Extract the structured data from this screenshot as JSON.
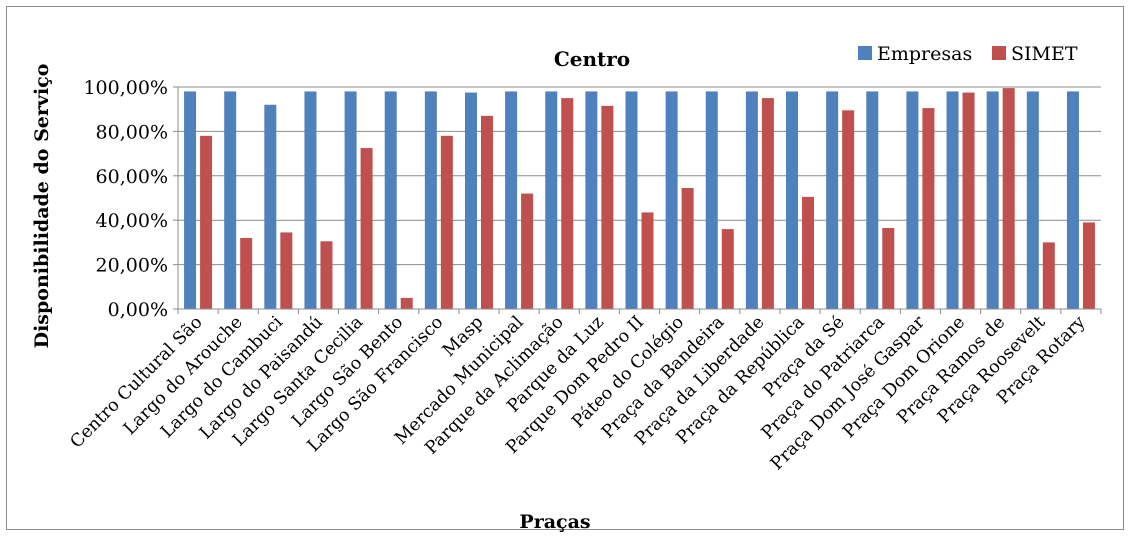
{
  "chart_data": {
    "type": "bar",
    "title": "Centro",
    "xlabel": "Praças",
    "ylabel": "Disponibilidade do Serviço",
    "ylim": [
      0,
      1
    ],
    "y_ticks": [
      "0,00%",
      "20,00%",
      "40,00%",
      "60,00%",
      "80,00%",
      "100,00%"
    ],
    "grid": true,
    "legend_position": "top-right",
    "categories": [
      "Centro Cultural São",
      "Largo do Arouche",
      "Largo do Cambuci",
      "Largo do Paisandú",
      "Largo Santa Cecilia",
      "Largo São Bento",
      "Largo São Francisco",
      "Masp",
      "Mercado Municipal",
      "Parque da Aclimação",
      "Parque da Luz",
      "Parque Dom Pedro II",
      "Páteo do Colégio",
      "Praça da Bandeira",
      "Praça da Liberdade",
      "Praça da República",
      "Praça da Sé",
      "Praça do Patriarca",
      "Praça Dom José Gaspar",
      "Praça Dom Orione",
      "Praça Ramos de",
      "Praça Roosevelt",
      "Praça Rotary"
    ],
    "series": [
      {
        "name": "Empresas",
        "color": "#4f81bd",
        "values": [
          0.98,
          0.98,
          0.92,
          0.98,
          0.98,
          0.98,
          0.98,
          0.975,
          0.98,
          0.98,
          0.98,
          0.98,
          0.98,
          0.98,
          0.98,
          0.98,
          0.98,
          0.98,
          0.98,
          0.98,
          0.98,
          0.98,
          0.98
        ]
      },
      {
        "name": "SIMET",
        "color": "#c0504d",
        "values": [
          0.78,
          0.32,
          0.345,
          0.305,
          0.725,
          0.05,
          0.78,
          0.87,
          0.52,
          0.95,
          0.915,
          0.435,
          0.545,
          0.36,
          0.95,
          0.505,
          0.895,
          0.365,
          0.905,
          0.975,
          0.995,
          0.3,
          0.39
        ]
      }
    ]
  }
}
